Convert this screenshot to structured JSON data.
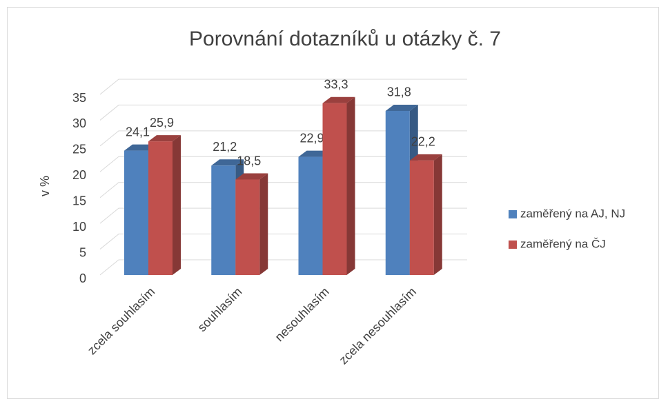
{
  "chart_data": {
    "type": "bar3d",
    "title": "Porovnání dotazníků u otázky č. 7",
    "ylabel": "v %",
    "categories": [
      "zcela souhlasím",
      "souhlasím",
      "nesouhlasím",
      "zcela nesouhlasím"
    ],
    "series": [
      {
        "name": "zaměřený na AJ, NJ",
        "color": "#4f81bd",
        "values": [
          24.1,
          21.2,
          22.9,
          31.8
        ],
        "value_labels": [
          "24,1",
          "21,2",
          "22,9",
          "31,8"
        ]
      },
      {
        "name": "zaměřený na ČJ",
        "color": "#c0504d",
        "values": [
          25.9,
          18.5,
          33.3,
          22.2
        ],
        "value_labels": [
          "25,9",
          "18,5",
          "33,3",
          "22,2"
        ]
      }
    ],
    "ylim": [
      0,
      35
    ],
    "yticks": [
      0,
      5,
      10,
      15,
      20,
      25,
      30,
      35
    ],
    "grid": true,
    "legend": "right"
  }
}
